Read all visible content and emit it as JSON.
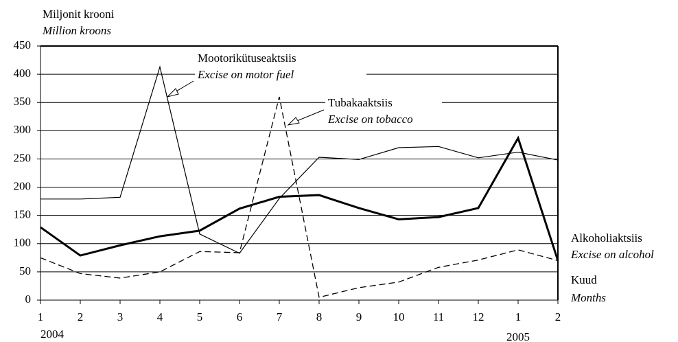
{
  "chart_data": {
    "type": "line",
    "y_label": "Miljonit krooni",
    "y_label_en": "Million kroons",
    "x_label": "Kuud",
    "x_label_en": "Months",
    "categories": [
      "1",
      "2",
      "3",
      "4",
      "5",
      "6",
      "7",
      "8",
      "9",
      "10",
      "11",
      "12",
      "1",
      "2"
    ],
    "years": [
      "2004",
      null,
      null,
      null,
      null,
      null,
      null,
      null,
      null,
      null,
      null,
      null,
      "2005",
      null
    ],
    "ylim": [
      0,
      450
    ],
    "yticks": [
      0,
      50,
      100,
      150,
      200,
      250,
      300,
      350,
      400,
      450
    ],
    "grid": true,
    "series": [
      {
        "name": "Mootorikütuseaktsiis",
        "name_en": "Excise on motor fuel",
        "color": "#000000",
        "style": "solid",
        "width": 1.2,
        "values": [
          179,
          179,
          182,
          413,
          117,
          83,
          180,
          253,
          249,
          270,
          272,
          252,
          262,
          248
        ]
      },
      {
        "name": "Tubakaaktsiis",
        "name_en": "Excise on tobacco",
        "color": "#000000",
        "style": "dashed",
        "width": 1.3,
        "values": [
          75,
          47,
          39,
          50,
          86,
          84,
          360,
          5,
          22,
          32,
          58,
          71,
          89,
          70
        ]
      },
      {
        "name": "Alkoholiaktsiis",
        "name_en": "Excise on alcohol",
        "color": "#000000",
        "style": "solid",
        "width": 3,
        "values": [
          129,
          79,
          97,
          113,
          123,
          162,
          183,
          186,
          163,
          143,
          147,
          163,
          287,
          70
        ]
      }
    ]
  }
}
